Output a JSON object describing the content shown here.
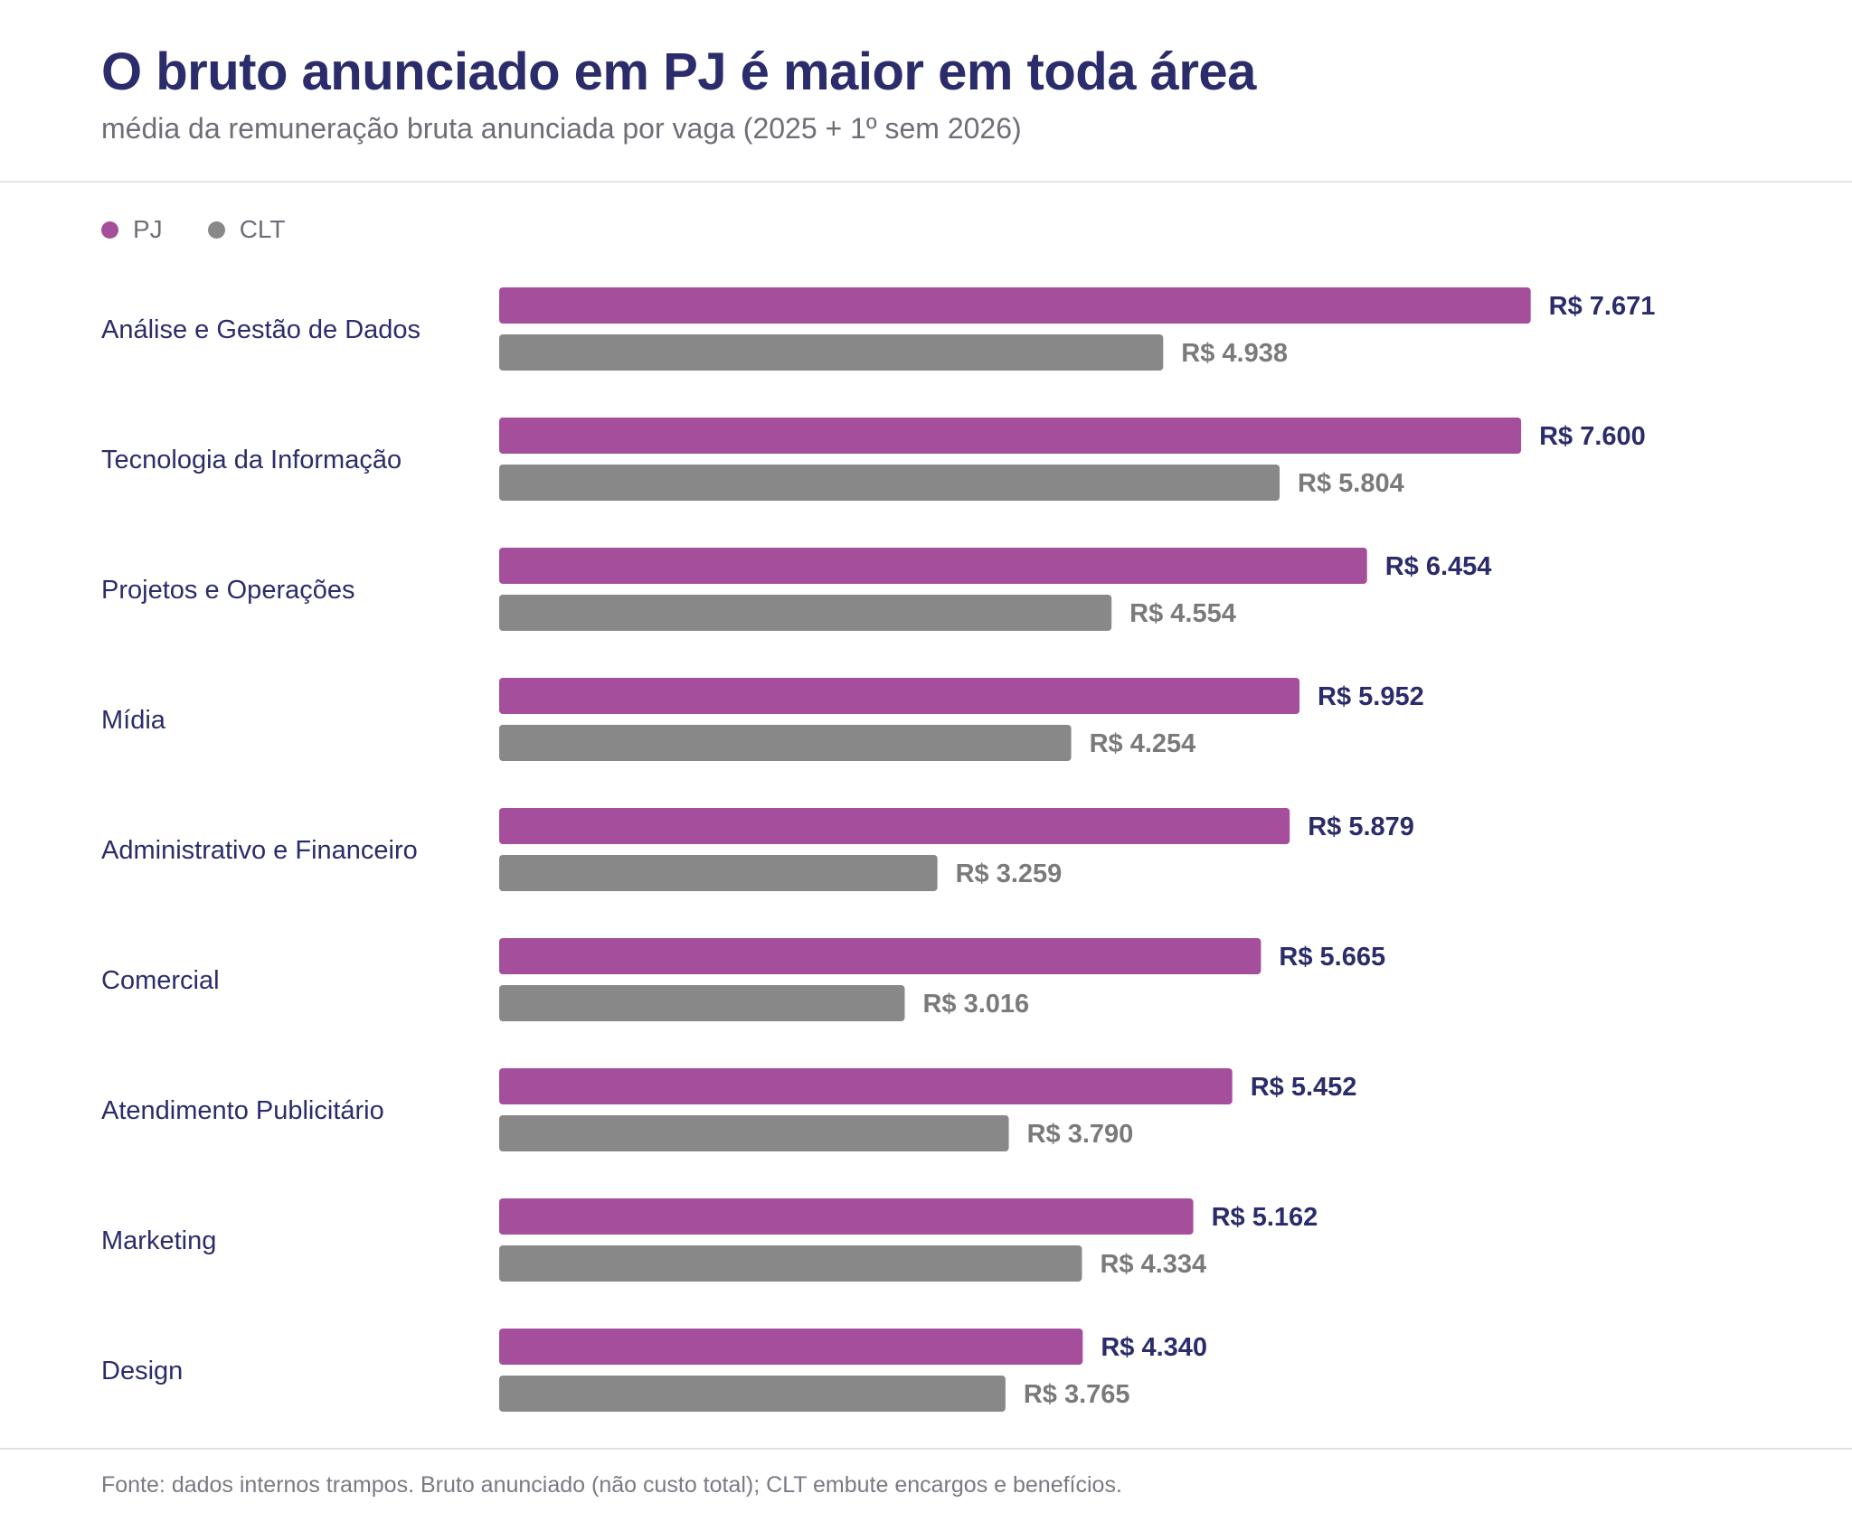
{
  "title": "O bruto anunciado em PJ é maior em toda área",
  "subtitle": "média da remuneração bruta anunciada por vaga (2025 + 1º sem 2026)",
  "footer": "Fonte: dados internos trampos. Bruto anunciado (não custo total); CLT embute encargos e benefícios.",
  "legend": [
    {
      "name": "PJ",
      "color": "#a54f9c"
    },
    {
      "name": "CLT",
      "color": "#888888"
    }
  ],
  "colors": {
    "pj_bar": "#a54f9c",
    "clt_bar": "#888888",
    "pj_label": "#2b2c6b",
    "clt_label": "#7a7a7a",
    "category_label": "#2b2c6b"
  },
  "chart_data": {
    "type": "bar",
    "orientation": "horizontal",
    "categories": [
      "Análise e Gestão de Dados",
      "Tecnologia da Informação",
      "Projetos e Operações",
      "Mídia",
      "Administrativo e Financeiro",
      "Comercial",
      "Atendimento Publicitário",
      "Marketing",
      "Design"
    ],
    "series": [
      {
        "name": "PJ",
        "values": [
          7671,
          7600,
          6454,
          5952,
          5879,
          5665,
          5452,
          5162,
          4340
        ],
        "labels": [
          "R$ 7.671",
          "R$ 7.600",
          "R$ 6.454",
          "R$ 5.952",
          "R$ 5.879",
          "R$ 5.665",
          "R$ 5.452",
          "R$ 5.162",
          "R$ 4.340"
        ]
      },
      {
        "name": "CLT",
        "values": [
          4938,
          5804,
          4554,
          4254,
          3259,
          3016,
          3790,
          4334,
          3765
        ],
        "labels": [
          "R$ 4.938",
          "R$ 5.804",
          "R$ 4.554",
          "R$ 4.254",
          "R$ 3.259",
          "R$ 3.016",
          "R$ 3.790",
          "R$ 4.334",
          "R$ 3.765"
        ]
      }
    ],
    "xlim": [
      0,
      7671
    ],
    "grid": false,
    "legend_position": "top-left"
  }
}
